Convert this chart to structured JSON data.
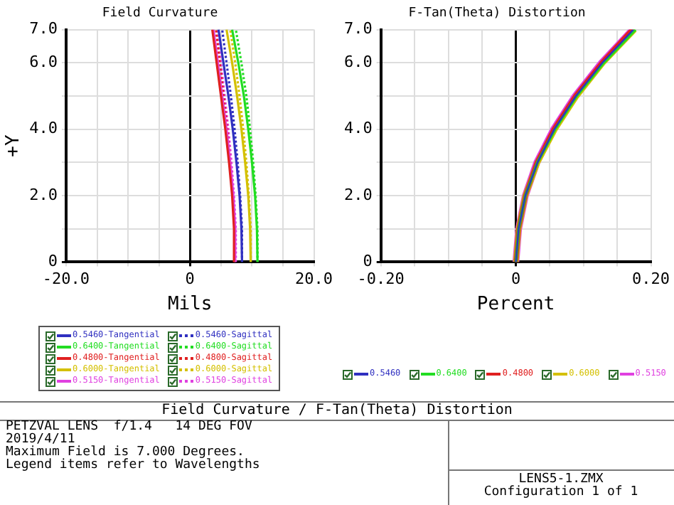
{
  "chart_data": [
    {
      "type": "line",
      "title": "Field Curvature",
      "xlabel": "Mils",
      "ylabel": "+Y",
      "xlim": [
        -20,
        20
      ],
      "ylim": [
        0,
        7
      ],
      "grid": true,
      "legend": "bottom",
      "xticks": [
        {
          "value": -20,
          "label": "-20.0"
        },
        {
          "value": -15,
          "label": null
        },
        {
          "value": -10,
          "label": null
        },
        {
          "value": -5,
          "label": null
        },
        0,
        {
          "value": 5,
          "label": null
        },
        {
          "value": 10,
          "label": null
        },
        {
          "value": 15,
          "label": null
        },
        {
          "value": 20,
          "label": "20.0"
        }
      ],
      "yticks": [
        0,
        {
          "value": 1,
          "label": null
        },
        {
          "value": 2,
          "label": "2.0"
        },
        {
          "value": 3,
          "label": null
        },
        {
          "value": 4,
          "label": "4.0"
        },
        {
          "value": 5,
          "label": null
        },
        {
          "value": 6,
          "label": "6.0"
        },
        {
          "value": 7,
          "label": "7.0"
        }
      ],
      "series": [
        {
          "name": "0.5460-Tangential",
          "color": "#3030c0",
          "x": [
            8.4,
            8.3,
            8.0,
            7.5,
            6.9,
            6.2,
            5.4,
            4.6
          ],
          "values": [
            0,
            1,
            2,
            3,
            4,
            5,
            6,
            7
          ]
        },
        {
          "name": "0.6400-Tangential",
          "color": "#22dd22",
          "x": [
            10.9,
            10.8,
            10.5,
            10.0,
            9.4,
            8.7,
            7.8,
            6.8
          ],
          "values": [
            0,
            1,
            2,
            3,
            4,
            5,
            6,
            7
          ]
        },
        {
          "name": "0.4800-Tangential",
          "color": "#e02020",
          "x": [
            7.2,
            7.1,
            6.8,
            6.3,
            5.7,
            5.0,
            4.3,
            3.6
          ],
          "values": [
            0,
            1,
            2,
            3,
            4,
            5,
            6,
            7
          ]
        },
        {
          "name": "0.6000-Tangential",
          "color": "#d4c000",
          "x": [
            9.8,
            9.7,
            9.4,
            8.9,
            8.3,
            7.6,
            6.8,
            5.9
          ],
          "values": [
            0,
            1,
            2,
            3,
            4,
            5,
            6,
            7
          ]
        },
        {
          "name": "0.5150-Tangential",
          "color": "#e040e0",
          "x": [
            7.4,
            7.3,
            7.0,
            6.5,
            5.9,
            5.2,
            4.5,
            3.8
          ],
          "values": [
            0,
            1,
            2,
            3,
            4,
            5,
            6,
            7
          ]
        },
        {
          "name": "0.5460-Sagittal",
          "color": "#3030c0",
          "line_style": "dotted",
          "x": [
            8.4,
            8.4,
            8.1,
            7.7,
            7.2,
            6.6,
            5.9,
            5.2
          ],
          "values": [
            0,
            1,
            2,
            3,
            4,
            5,
            6,
            7
          ]
        },
        {
          "name": "0.6400-Sagittal",
          "color": "#22dd22",
          "line_style": "dotted",
          "x": [
            10.9,
            10.9,
            10.6,
            10.2,
            9.7,
            9.1,
            8.3,
            7.4
          ],
          "values": [
            0,
            1,
            2,
            3,
            4,
            5,
            6,
            7
          ]
        },
        {
          "name": "0.4800-Sagittal",
          "color": "#e02020",
          "line_style": "dotted",
          "x": [
            7.2,
            7.2,
            6.9,
            6.5,
            6.0,
            5.4,
            4.8,
            4.2
          ],
          "values": [
            0,
            1,
            2,
            3,
            4,
            5,
            6,
            7
          ]
        },
        {
          "name": "0.6000-Sagittal",
          "color": "#d4c000",
          "line_style": "dotted",
          "x": [
            9.8,
            9.8,
            9.5,
            9.1,
            8.6,
            8.0,
            7.3,
            6.5
          ],
          "values": [
            0,
            1,
            2,
            3,
            4,
            5,
            6,
            7
          ]
        },
        {
          "name": "0.5150-Sagittal",
          "color": "#e040e0",
          "line_style": "dotted",
          "x": [
            7.4,
            7.4,
            7.1,
            6.7,
            6.2,
            5.6,
            5.0,
            4.4
          ],
          "values": [
            0,
            1,
            2,
            3,
            4,
            5,
            6,
            7
          ]
        }
      ]
    },
    {
      "type": "line",
      "title": "F-Tan(Theta) Distortion",
      "xlabel": "Percent",
      "xlim": [
        -0.2,
        0.2
      ],
      "ylim": [
        0,
        7
      ],
      "grid": true,
      "legend": "bottom",
      "xticks": [
        {
          "value": -0.2,
          "label": "-0.20"
        },
        {
          "value": -0.15,
          "label": null
        },
        {
          "value": -0.1,
          "label": null
        },
        {
          "value": -0.05,
          "label": null
        },
        0,
        {
          "value": 0.05,
          "label": null
        },
        {
          "value": 0.1,
          "label": null
        },
        {
          "value": 0.15,
          "label": null
        },
        {
          "value": 0.2,
          "label": "0.20"
        }
      ],
      "yticks": [
        0,
        {
          "value": 1,
          "label": null
        },
        {
          "value": 2,
          "label": "2.0"
        },
        {
          "value": 3,
          "label": null
        },
        {
          "value": 4,
          "label": "4.0"
        },
        {
          "value": 5,
          "label": null
        },
        {
          "value": 6,
          "label": "6.0"
        },
        {
          "value": 7,
          "label": "7.0"
        }
      ],
      "series": [
        {
          "name": "0.5460",
          "color": "#3030c0",
          "x": [
            0,
            0.004,
            0.014,
            0.032,
            0.057,
            0.089,
            0.128,
            0.174
          ],
          "values": [
            0,
            1,
            2,
            3,
            4,
            5,
            6,
            7
          ]
        },
        {
          "name": "0.6400",
          "color": "#22dd22",
          "x": [
            0,
            0.004,
            0.014,
            0.032,
            0.058,
            0.09,
            0.13,
            0.177
          ],
          "values": [
            0,
            1,
            2,
            3,
            4,
            5,
            6,
            7
          ]
        },
        {
          "name": "0.4800",
          "color": "#e02020",
          "x": [
            0,
            0.004,
            0.014,
            0.031,
            0.056,
            0.088,
            0.127,
            0.172
          ],
          "values": [
            0,
            1,
            2,
            3,
            4,
            5,
            6,
            7
          ]
        },
        {
          "name": "0.6000",
          "color": "#d4c000",
          "x": [
            0,
            0.004,
            0.014,
            0.032,
            0.058,
            0.09,
            0.129,
            0.176
          ],
          "values": [
            0,
            1,
            2,
            3,
            4,
            5,
            6,
            7
          ]
        },
        {
          "name": "0.5150",
          "color": "#e040e0",
          "x": [
            0,
            0.004,
            0.014,
            0.031,
            0.056,
            0.088,
            0.127,
            0.173
          ],
          "values": [
            0,
            1,
            2,
            3,
            4,
            5,
            6,
            7
          ]
        }
      ]
    },
    {
      "type": "other",
      "title": "Field Curvature / F-Tan(Theta) Distortion",
      "annotations": [
        "PETZVAL LENS  f/1.4   14 DEG FOV",
        "2019/4/11",
        "Maximum Field is 7.000 Degrees.",
        "Legend items refer to Wavelengths"
      ]
    },
    {
      "type": "other",
      "annotations": [
        "LENS5-1.ZMX",
        "Configuration 1 of 1"
      ]
    }
  ]
}
